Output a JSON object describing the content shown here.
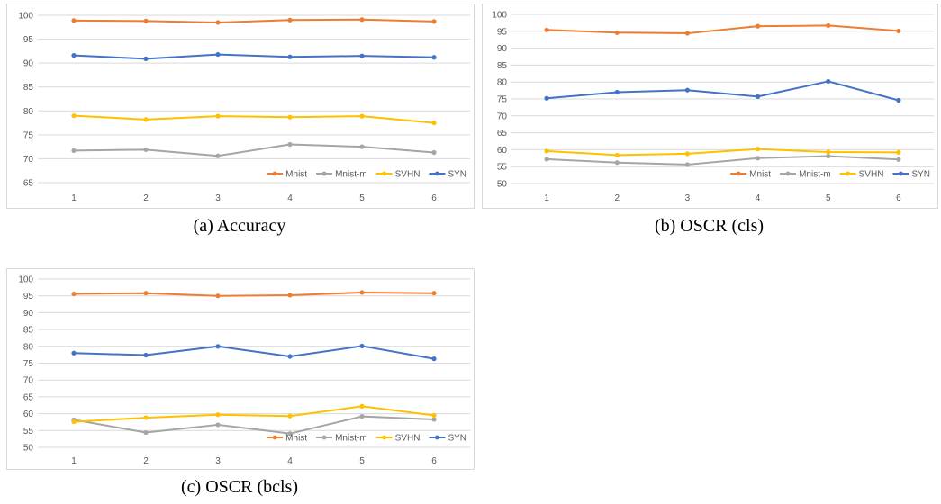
{
  "chart_data": [
    {
      "type": "line",
      "caption": "(a) Accuracy",
      "categories": [
        "1",
        "2",
        "3",
        "4",
        "5",
        "6"
      ],
      "ylim": [
        65,
        100
      ],
      "yticks": [
        "65",
        "70",
        "75",
        "80",
        "85",
        "90",
        "95",
        "100"
      ],
      "grid": "horizontal",
      "legend_position": "bottom-right",
      "series": [
        {
          "name": "Mnist",
          "color": "#ED7D31",
          "values": [
            98.9,
            98.8,
            98.5,
            99.0,
            99.1,
            98.7
          ]
        },
        {
          "name": "Mnist-m",
          "color": "#A5A5A5",
          "values": [
            71.7,
            71.9,
            70.6,
            73.0,
            72.5,
            71.3
          ]
        },
        {
          "name": "SVHN",
          "color": "#FFC000",
          "values": [
            79.0,
            78.2,
            78.9,
            78.7,
            78.9,
            77.5
          ]
        },
        {
          "name": "SYN",
          "color": "#4472C4",
          "values": [
            91.6,
            90.9,
            91.8,
            91.3,
            91.5,
            91.2
          ]
        }
      ]
    },
    {
      "type": "line",
      "caption": "(b) OSCR (cls)",
      "categories": [
        "1",
        "2",
        "3",
        "4",
        "5",
        "6"
      ],
      "ylim": [
        50,
        100
      ],
      "yticks": [
        "50",
        "55",
        "60",
        "65",
        "70",
        "75",
        "80",
        "85",
        "90",
        "95",
        "100"
      ],
      "grid": "horizontal",
      "legend_position": "bottom-right",
      "series": [
        {
          "name": "Mnist",
          "color": "#ED7D31",
          "values": [
            95.4,
            94.6,
            94.4,
            96.5,
            96.7,
            95.1
          ]
        },
        {
          "name": "Mnist-m",
          "color": "#A5A5A5",
          "values": [
            57.2,
            56.2,
            55.6,
            57.5,
            58.1,
            57.1
          ]
        },
        {
          "name": "SVHN",
          "color": "#FFC000",
          "values": [
            59.6,
            58.4,
            58.8,
            60.2,
            59.3,
            59.2
          ]
        },
        {
          "name": "SYN",
          "color": "#4472C4",
          "values": [
            75.2,
            77.0,
            77.6,
            75.7,
            80.2,
            74.6
          ]
        }
      ]
    },
    {
      "type": "line",
      "caption": "(c) OSCR (bcls)",
      "categories": [
        "1",
        "2",
        "3",
        "4",
        "5",
        "6"
      ],
      "ylim": [
        50,
        100
      ],
      "yticks": [
        "50",
        "55",
        "60",
        "65",
        "70",
        "75",
        "80",
        "85",
        "90",
        "95",
        "100"
      ],
      "grid": "horizontal",
      "legend_position": "bottom-right",
      "series": [
        {
          "name": "Mnist",
          "color": "#ED7D31",
          "values": [
            95.6,
            95.8,
            95.0,
            95.2,
            96.0,
            95.8
          ]
        },
        {
          "name": "Mnist-m",
          "color": "#A5A5A5",
          "values": [
            58.2,
            54.4,
            56.7,
            54.1,
            59.2,
            58.3
          ]
        },
        {
          "name": "SVHN",
          "color": "#FFC000",
          "values": [
            57.6,
            58.8,
            59.7,
            59.3,
            62.2,
            59.5
          ]
        },
        {
          "name": "SYN",
          "color": "#4472C4",
          "values": [
            78.0,
            77.4,
            80.0,
            77.0,
            80.1,
            76.3
          ]
        }
      ]
    }
  ]
}
